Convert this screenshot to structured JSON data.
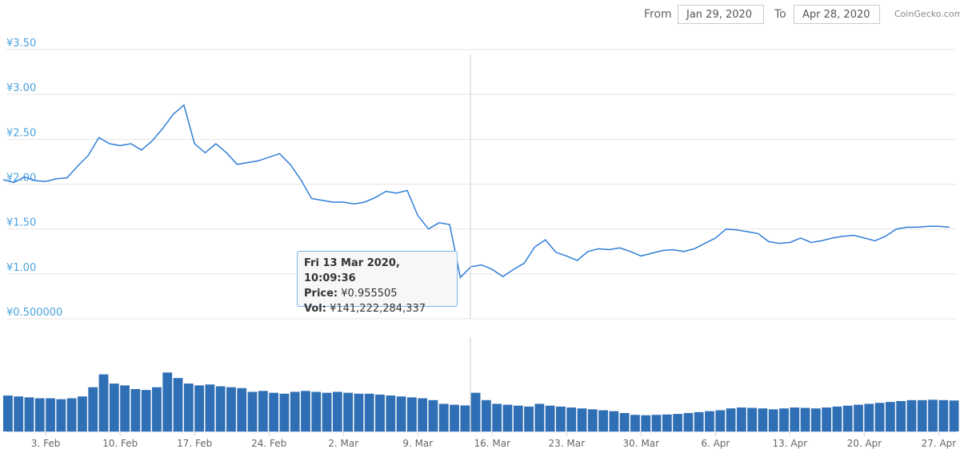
{
  "header": {
    "from_label": "From",
    "from_date": "Jan 29, 2020",
    "to_label": "To",
    "to_date": "Apr 28, 2020",
    "credit": "CoinGecko.com"
  },
  "tooltip": {
    "date": "Fri 13 Mar 2020, 10:09:36",
    "price_label": "Price:",
    "price": "¥0.955505",
    "vol_label": "Vol:",
    "vol": "¥141,222,284,337"
  },
  "chart_data": {
    "type": "line",
    "x": [
      "2020-01-30",
      "2020-01-31",
      "2020-02-01",
      "2020-02-02",
      "2020-02-03",
      "2020-02-04",
      "2020-02-05",
      "2020-02-06",
      "2020-02-07",
      "2020-02-08",
      "2020-02-09",
      "2020-02-10",
      "2020-02-11",
      "2020-02-12",
      "2020-02-13",
      "2020-02-14",
      "2020-02-15",
      "2020-02-16",
      "2020-02-17",
      "2020-02-18",
      "2020-02-19",
      "2020-02-20",
      "2020-02-21",
      "2020-02-22",
      "2020-02-23",
      "2020-02-24",
      "2020-02-25",
      "2020-02-26",
      "2020-02-27",
      "2020-02-28",
      "2020-02-29",
      "2020-03-01",
      "2020-03-02",
      "2020-03-03",
      "2020-03-04",
      "2020-03-05",
      "2020-03-06",
      "2020-03-07",
      "2020-03-08",
      "2020-03-09",
      "2020-03-10",
      "2020-03-11",
      "2020-03-12",
      "2020-03-13",
      "2020-03-14",
      "2020-03-15",
      "2020-03-16",
      "2020-03-17",
      "2020-03-18",
      "2020-03-19",
      "2020-03-20",
      "2020-03-21",
      "2020-03-22",
      "2020-03-23",
      "2020-03-24",
      "2020-03-25",
      "2020-03-26",
      "2020-03-27",
      "2020-03-28",
      "2020-03-29",
      "2020-03-30",
      "2020-03-31",
      "2020-04-01",
      "2020-04-02",
      "2020-04-03",
      "2020-04-04",
      "2020-04-05",
      "2020-04-06",
      "2020-04-07",
      "2020-04-08",
      "2020-04-09",
      "2020-04-10",
      "2020-04-11",
      "2020-04-12",
      "2020-04-13",
      "2020-04-14",
      "2020-04-15",
      "2020-04-16",
      "2020-04-17",
      "2020-04-18",
      "2020-04-19",
      "2020-04-20",
      "2020-04-21",
      "2020-04-22",
      "2020-04-23",
      "2020-04-24",
      "2020-04-25",
      "2020-04-26",
      "2020-04-27",
      "2020-04-28"
    ],
    "series": [
      {
        "color": "#2f7ed8",
        "values": [
          2.05,
          2.02,
          2.08,
          2.04,
          2.03,
          2.06,
          2.07,
          2.2,
          2.32,
          2.52,
          2.45,
          2.43,
          2.45,
          2.38,
          2.48,
          2.62,
          2.78,
          2.88,
          2.45,
          2.35,
          2.45,
          2.35,
          2.22,
          2.24,
          2.26,
          2.3,
          2.34,
          2.22,
          2.05,
          1.84,
          1.82,
          1.8,
          1.8,
          1.78,
          1.8,
          1.85,
          1.92,
          1.9,
          1.93,
          1.65,
          1.5,
          1.57,
          1.55,
          0.96,
          1.08,
          1.1,
          1.05,
          0.97,
          1.05,
          1.12,
          1.3,
          1.38,
          1.24,
          1.2,
          1.15,
          1.25,
          1.28,
          1.27,
          1.29,
          1.25,
          1.2,
          1.23,
          1.26,
          1.27,
          1.25,
          1.28,
          1.34,
          1.4,
          1.5,
          1.49,
          1.47,
          1.45,
          1.36,
          1.34,
          1.35,
          1.4,
          1.35,
          1.37,
          1.4,
          1.42,
          1.43,
          1.4,
          1.37,
          1.42,
          1.5,
          1.52,
          1.52,
          1.53,
          1.53,
          1.52
        ]
      }
    ],
    "volume": {
      "color": "#2f6fb5",
      "values": [
        195000000000,
        190000000000,
        185000000000,
        180000000000,
        180000000000,
        175000000000,
        180000000000,
        190000000000,
        240000000000,
        310000000000,
        260000000000,
        250000000000,
        230000000000,
        225000000000,
        240000000000,
        320000000000,
        290000000000,
        260000000000,
        250000000000,
        255000000000,
        245000000000,
        240000000000,
        235000000000,
        215000000000,
        220000000000,
        210000000000,
        205000000000,
        215000000000,
        220000000000,
        215000000000,
        210000000000,
        215000000000,
        210000000000,
        205000000000,
        205000000000,
        200000000000,
        195000000000,
        190000000000,
        185000000000,
        180000000000,
        170000000000,
        150000000000,
        145000000000,
        141222284337,
        210000000000,
        170000000000,
        150000000000,
        145000000000,
        140000000000,
        135000000000,
        150000000000,
        140000000000,
        135000000000,
        130000000000,
        125000000000,
        120000000000,
        115000000000,
        110000000000,
        100000000000,
        90000000000,
        88000000000,
        90000000000,
        92000000000,
        95000000000,
        100000000000,
        105000000000,
        110000000000,
        115000000000,
        125000000000,
        130000000000,
        128000000000,
        125000000000,
        120000000000,
        125000000000,
        130000000000,
        128000000000,
        125000000000,
        130000000000,
        135000000000,
        140000000000,
        145000000000,
        150000000000,
        155000000000,
        160000000000,
        165000000000,
        170000000000,
        170000000000,
        172000000000,
        170000000000,
        168000000000
      ]
    },
    "xlim": [
      "2020-01-30",
      "2020-04-29"
    ],
    "xticks": [
      {
        "value": "2020-02-03",
        "label": "3. Feb"
      },
      {
        "value": "2020-02-10",
        "label": "10. Feb"
      },
      {
        "value": "2020-02-17",
        "label": "17. Feb"
      },
      {
        "value": "2020-02-24",
        "label": "24. Feb"
      },
      {
        "value": "2020-03-02",
        "label": "2. Mar"
      },
      {
        "value": "2020-03-09",
        "label": "9. Mar"
      },
      {
        "value": "2020-03-16",
        "label": "16. Mar"
      },
      {
        "value": "2020-03-23",
        "label": "23. Mar"
      },
      {
        "value": "2020-03-30",
        "label": "30. Mar"
      },
      {
        "value": "2020-04-06",
        "label": "6. Apr"
      },
      {
        "value": "2020-04-13",
        "label": "13. Apr"
      },
      {
        "value": "2020-04-20",
        "label": "20. Apr"
      },
      {
        "value": "2020-04-27",
        "label": "27. Apr"
      }
    ],
    "ylim": [
      0.5,
      3.5
    ],
    "yticks": [
      {
        "value": 0.5,
        "label": "¥0.500000"
      },
      {
        "value": 1,
        "label": "¥1.00"
      },
      {
        "value": 1.5,
        "label": "¥1.50"
      },
      {
        "value": 2,
        "label": "¥2.00"
      },
      {
        "value": 2.5,
        "label": "¥2.50"
      },
      {
        "value": 3,
        "label": "¥3.00"
      },
      {
        "value": 3.5,
        "label": "¥3.50"
      }
    ],
    "grid": true
  }
}
